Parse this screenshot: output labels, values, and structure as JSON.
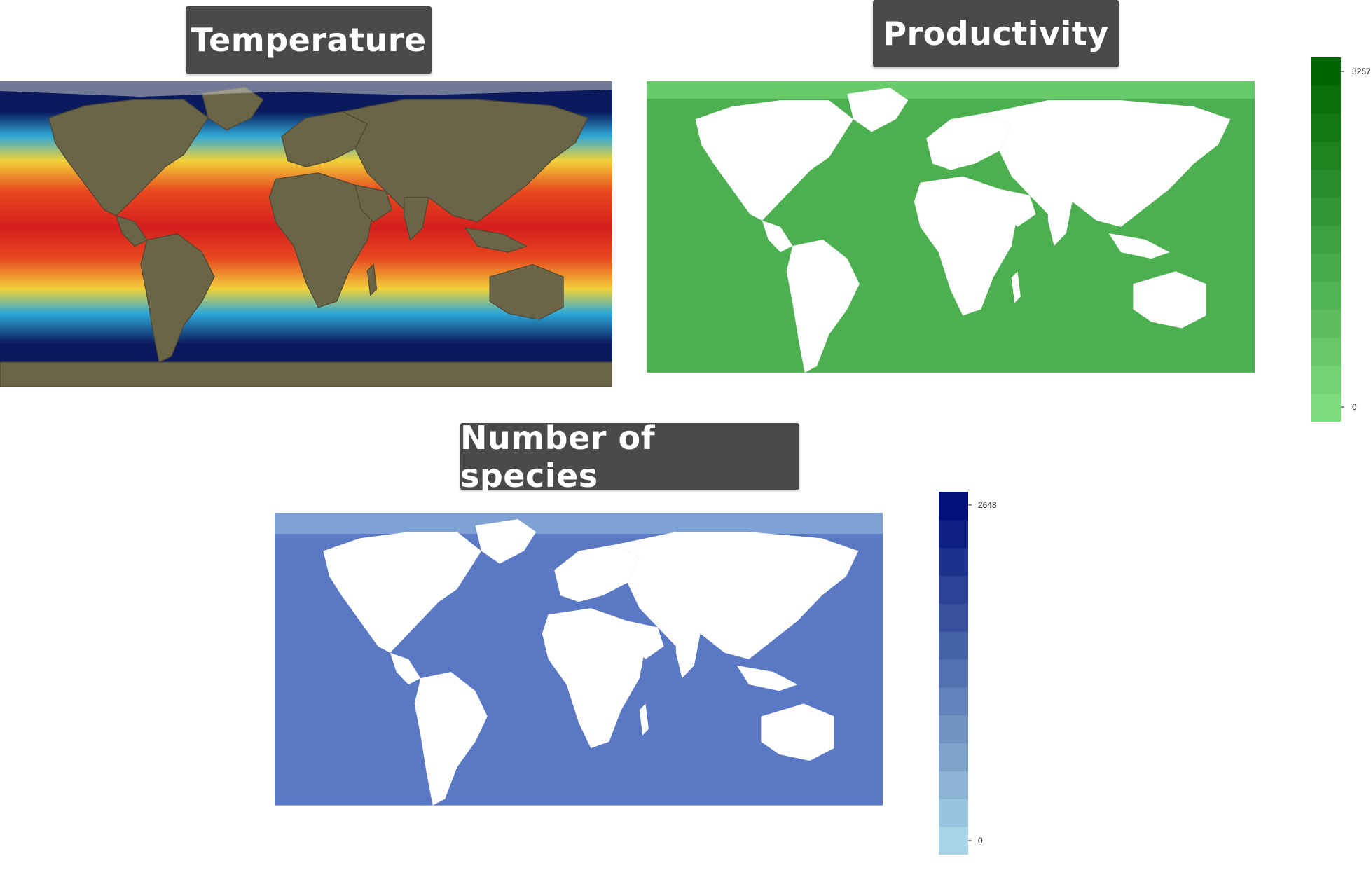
{
  "panels": {
    "temperature": {
      "title": "Temperature",
      "colors": {
        "cold": "#0a1a5c",
        "cool": "#2fa8d8",
        "mild": "#f2d13a",
        "warm": "#e8491f",
        "hot": "#d41e1e",
        "land": "#6b6548",
        "ice": "#c8c8c8"
      }
    },
    "productivity": {
      "title": "Productivity",
      "legend": {
        "max_label": "3257",
        "min_label": "0",
        "color_max": "#006400",
        "color_min": "#7ddc7d"
      },
      "colors": {
        "ocean": "#4caf50",
        "land": "#ffffff"
      }
    },
    "species": {
      "title": "Number of species",
      "legend": {
        "max_label": "2648",
        "min_label": "0",
        "color_max": "#00107a",
        "color_min": "#a8d4e6"
      },
      "colors": {
        "ocean": "#5a78c4",
        "land": "#ffffff"
      }
    }
  }
}
